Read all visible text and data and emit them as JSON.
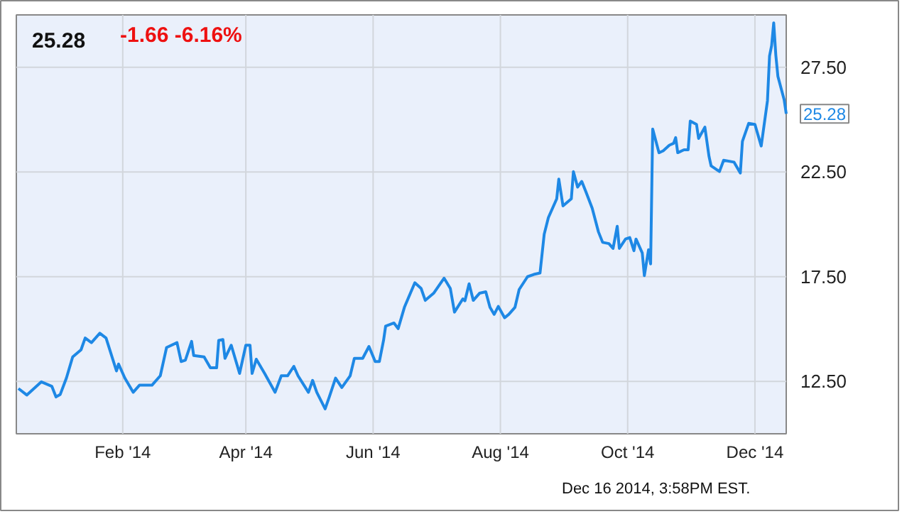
{
  "chart_data": {
    "type": "line",
    "title": "25.28",
    "subtitle": "-1.66  -6.16%",
    "x": [
      "2013-12-13",
      "2013-12-17",
      "2013-12-24",
      "2013-12-29",
      "2013-12-31",
      "2014-01-02",
      "2014-01-05",
      "2014-01-08",
      "2014-01-12",
      "2014-01-14",
      "2014-01-17",
      "2014-01-21",
      "2014-01-24",
      "2014-01-29",
      "2014-01-30",
      "2014-02-02",
      "2014-02-06",
      "2014-02-09",
      "2014-02-15",
      "2014-02-19",
      "2014-02-22",
      "2014-02-27",
      "2014-03-01",
      "2014-03-03",
      "2014-03-06",
      "2014-03-07",
      "2014-03-12",
      "2014-03-15",
      "2014-03-18",
      "2014-03-19",
      "2014-03-21",
      "2014-03-22",
      "2014-03-25",
      "2014-03-29",
      "2014-04-01",
      "2014-04-03",
      "2014-04-04",
      "2014-04-06",
      "2014-04-10",
      "2014-04-15",
      "2014-04-18",
      "2014-04-21",
      "2014-04-24",
      "2014-04-26",
      "2014-05-01",
      "2014-05-03",
      "2014-05-05",
      "2014-05-09",
      "2014-05-11",
      "2014-05-14",
      "2014-05-17",
      "2014-05-21",
      "2014-05-23",
      "2014-05-27",
      "2014-05-30",
      "2014-06-02",
      "2014-06-04",
      "2014-06-06",
      "2014-06-07",
      "2014-06-11",
      "2014-06-13",
      "2014-06-16",
      "2014-06-21",
      "2014-06-24",
      "2014-06-26",
      "2014-06-30",
      "2014-07-05",
      "2014-07-08",
      "2014-07-10",
      "2014-07-14",
      "2014-07-15",
      "2014-07-17",
      "2014-07-19",
      "2014-07-22",
      "2014-07-25",
      "2014-07-27",
      "2014-07-29",
      "2014-07-31",
      "2014-08-03",
      "2014-08-05",
      "2014-08-08",
      "2014-08-10",
      "2014-08-14",
      "2014-08-17",
      "2014-08-20",
      "2014-08-22",
      "2014-08-24",
      "2014-08-28",
      "2014-08-29",
      "2014-08-31",
      "2014-09-04",
      "2014-09-05",
      "2014-09-07",
      "2014-09-09",
      "2014-09-11",
      "2014-09-14",
      "2014-09-17",
      "2014-09-19",
      "2014-09-22",
      "2014-09-24",
      "2014-09-26",
      "2014-09-27",
      "2014-09-30",
      "2014-10-02",
      "2014-10-04",
      "2014-10-05",
      "2014-10-08",
      "2014-10-09",
      "2014-10-11",
      "2014-10-12",
      "2014-10-13",
      "2014-10-16",
      "2014-10-18",
      "2014-10-21",
      "2014-10-23",
      "2014-10-24",
      "2014-10-25",
      "2014-10-28",
      "2014-10-30",
      "2014-10-31",
      "2014-11-03",
      "2014-11-04",
      "2014-11-07",
      "2014-11-09",
      "2014-11-10",
      "2014-11-14",
      "2014-11-16",
      "2014-11-21",
      "2014-11-24",
      "2014-11-25",
      "2014-11-28",
      "2014-12-01",
      "2014-12-04",
      "2014-12-07",
      "2014-12-08",
      "2014-12-09",
      "2014-12-10",
      "2014-12-11",
      "2014-12-12",
      "2014-12-15",
      "2014-12-16"
    ],
    "series": [
      {
        "color": "#1e88e5",
        "values": [
          12.16,
          11.85,
          12.48,
          12.27,
          11.76,
          11.87,
          12.66,
          13.67,
          14.01,
          14.57,
          14.35,
          14.8,
          14.57,
          13.0,
          13.33,
          12.66,
          11.98,
          12.32,
          12.32,
          12.77,
          14.12,
          14.35,
          13.45,
          13.51,
          14.41,
          13.74,
          13.67,
          13.15,
          13.15,
          14.46,
          14.5,
          13.6,
          14.23,
          12.88,
          14.23,
          14.23,
          12.88,
          13.56,
          12.88,
          11.98,
          12.77,
          12.77,
          13.22,
          12.77,
          11.98,
          12.55,
          11.98,
          11.19,
          11.76,
          12.66,
          12.21,
          12.77,
          13.6,
          13.6,
          14.17,
          13.45,
          13.45,
          14.46,
          15.14,
          15.29,
          15.02,
          16.04,
          17.21,
          16.94,
          16.37,
          16.71,
          17.43,
          16.94,
          15.81,
          16.44,
          16.35,
          17.16,
          16.37,
          16.71,
          16.78,
          16.04,
          15.7,
          16.08,
          15.54,
          15.7,
          16.04,
          16.89,
          17.5,
          17.61,
          17.68,
          19.53,
          20.32,
          21.22,
          22.16,
          20.88,
          21.22,
          22.52,
          21.78,
          22.05,
          21.55,
          20.77,
          19.64,
          19.14,
          19.08,
          18.85,
          19.91,
          18.85,
          19.3,
          19.37,
          18.74,
          19.3,
          18.63,
          17.55,
          18.79,
          18.11,
          24.55,
          23.42,
          23.51,
          23.78,
          23.87,
          24.14,
          23.42,
          23.56,
          23.56,
          24.93,
          24.77,
          24.1,
          24.64,
          23.24,
          22.79,
          22.52,
          23.06,
          22.97,
          22.45,
          23.96,
          24.82,
          24.77,
          23.74,
          25.9,
          28.04,
          28.54,
          29.62,
          28.09,
          27.07,
          25.95,
          25.28
        ]
      }
    ],
    "xlim": [
      "2013-12-12",
      "2014-12-16"
    ],
    "xticks": [
      {
        "value": "2014-02-01",
        "label": "Feb '14"
      },
      {
        "value": "2014-04-01",
        "label": "Apr '14"
      },
      {
        "value": "2014-06-01",
        "label": "Jun '14"
      },
      {
        "value": "2014-08-01",
        "label": "Aug '14"
      },
      {
        "value": "2014-10-01",
        "label": "Oct '14"
      },
      {
        "value": "2014-12-01",
        "label": "Dec '14"
      }
    ],
    "ylim": [
      10,
      30
    ],
    "yticks": [
      {
        "value": 12.5,
        "label": "12.50"
      },
      {
        "value": 17.5,
        "label": "17.50"
      },
      {
        "value": 22.5,
        "label": "22.50"
      },
      {
        "value": 27.5,
        "label": "27.50"
      }
    ],
    "grid": true,
    "annotations": [
      {
        "text": "25.28",
        "x": "2014-12-16",
        "y": 25.28
      },
      "Dec 16 2014, 3:58PM EST."
    ]
  }
}
